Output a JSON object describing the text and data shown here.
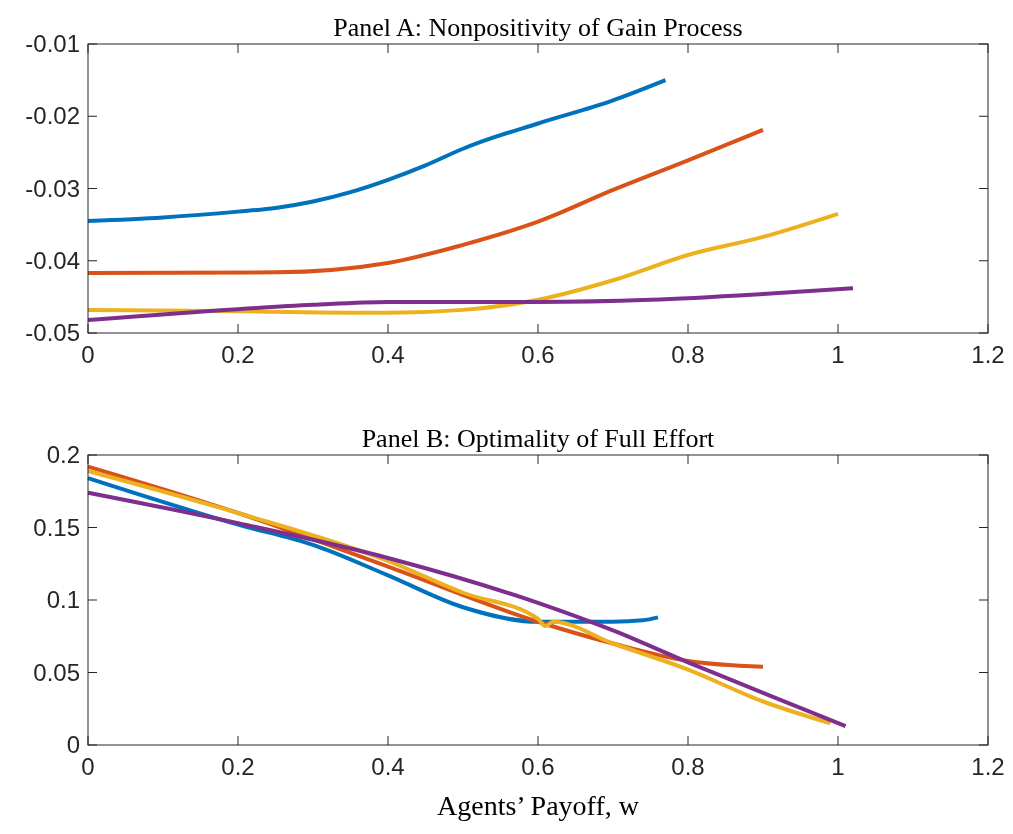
{
  "chart_data": [
    {
      "type": "line",
      "title": "Panel A: Nonpositivity of Gain Process",
      "xlim": [
        0,
        1.2
      ],
      "xticks": [
        0,
        0.2,
        0.4,
        0.6,
        0.8,
        1,
        1.2
      ],
      "ylim": [
        -0.05,
        -0.01
      ],
      "yticks": [
        -0.05,
        -0.04,
        -0.03,
        -0.02,
        -0.01
      ],
      "series": [
        {
          "color": "#0072bd",
          "x": [
            0,
            0.1,
            0.2,
            0.25,
            0.3,
            0.35,
            0.4,
            0.45,
            0.5,
            0.52,
            0.6,
            0.7,
            0.77
          ],
          "values": [
            -0.0345,
            -0.034,
            -0.0332,
            -0.0327,
            -0.0318,
            -0.0305,
            -0.0288,
            -0.0268,
            -0.0245,
            -0.0237,
            -0.021,
            -0.0178,
            -0.015
          ]
        },
        {
          "color": "#d95319",
          "x": [
            0,
            0.25,
            0.4,
            0.5,
            0.6,
            0.7,
            0.8,
            0.9
          ],
          "values": [
            -0.0417,
            -0.0416,
            -0.0403,
            -0.0378,
            -0.0346,
            -0.0302,
            -0.0261,
            -0.0219
          ]
        },
        {
          "color": "#edb120",
          "x": [
            0,
            0.2,
            0.4,
            0.5,
            0.6,
            0.7,
            0.8,
            0.9,
            1
          ],
          "values": [
            -0.0468,
            -0.047,
            -0.0472,
            -0.0468,
            -0.0454,
            -0.0427,
            -0.0392,
            -0.0367,
            -0.0335
          ]
        },
        {
          "color": "#7e2f8e",
          "x": [
            0,
            0.2,
            0.3,
            0.4,
            0.6,
            0.75,
            0.9,
            1.02
          ],
          "values": [
            -0.0482,
            -0.0467,
            -0.0461,
            -0.0457,
            -0.0457,
            -0.0454,
            -0.0446,
            -0.0438
          ]
        }
      ]
    },
    {
      "type": "line",
      "title": "Panel B: Optimality of Full Effort",
      "xlabel": "Agents’ Payoff, w",
      "xlim": [
        0,
        1.2
      ],
      "xticks": [
        0,
        0.2,
        0.4,
        0.6,
        0.8,
        1,
        1.2
      ],
      "ylim": [
        0,
        0.2
      ],
      "yticks": [
        0,
        0.05,
        0.1,
        0.15,
        0.2
      ],
      "series": [
        {
          "color": "#0072bd",
          "x": [
            0,
            0.2,
            0.3,
            0.4,
            0.5,
            0.6,
            0.7,
            0.74,
            0.76
          ],
          "values": [
            0.184,
            0.152,
            0.138,
            0.117,
            0.095,
            0.085,
            0.085,
            0.086,
            0.088
          ]
        },
        {
          "color": "#d95319",
          "x": [
            0,
            0.2,
            0.4,
            0.6,
            0.7,
            0.8,
            0.9
          ],
          "values": [
            0.192,
            0.16,
            0.123,
            0.085,
            0.07,
            0.058,
            0.054
          ]
        },
        {
          "color": "#edb120",
          "x": [
            0,
            0.2,
            0.4,
            0.5,
            0.6,
            0.61,
            0.62,
            0.7,
            0.8,
            0.9,
            0.99
          ],
          "values": [
            0.189,
            0.16,
            0.127,
            0.105,
            0.087,
            0.082,
            0.085,
            0.07,
            0.052,
            0.03,
            0.015
          ]
        },
        {
          "color": "#7e2f8e",
          "x": [
            0,
            0.2,
            0.4,
            0.6,
            0.7,
            0.8,
            0.9,
            1.01
          ],
          "values": [
            0.174,
            0.153,
            0.129,
            0.098,
            0.079,
            0.057,
            0.036,
            0.013
          ]
        }
      ]
    }
  ]
}
